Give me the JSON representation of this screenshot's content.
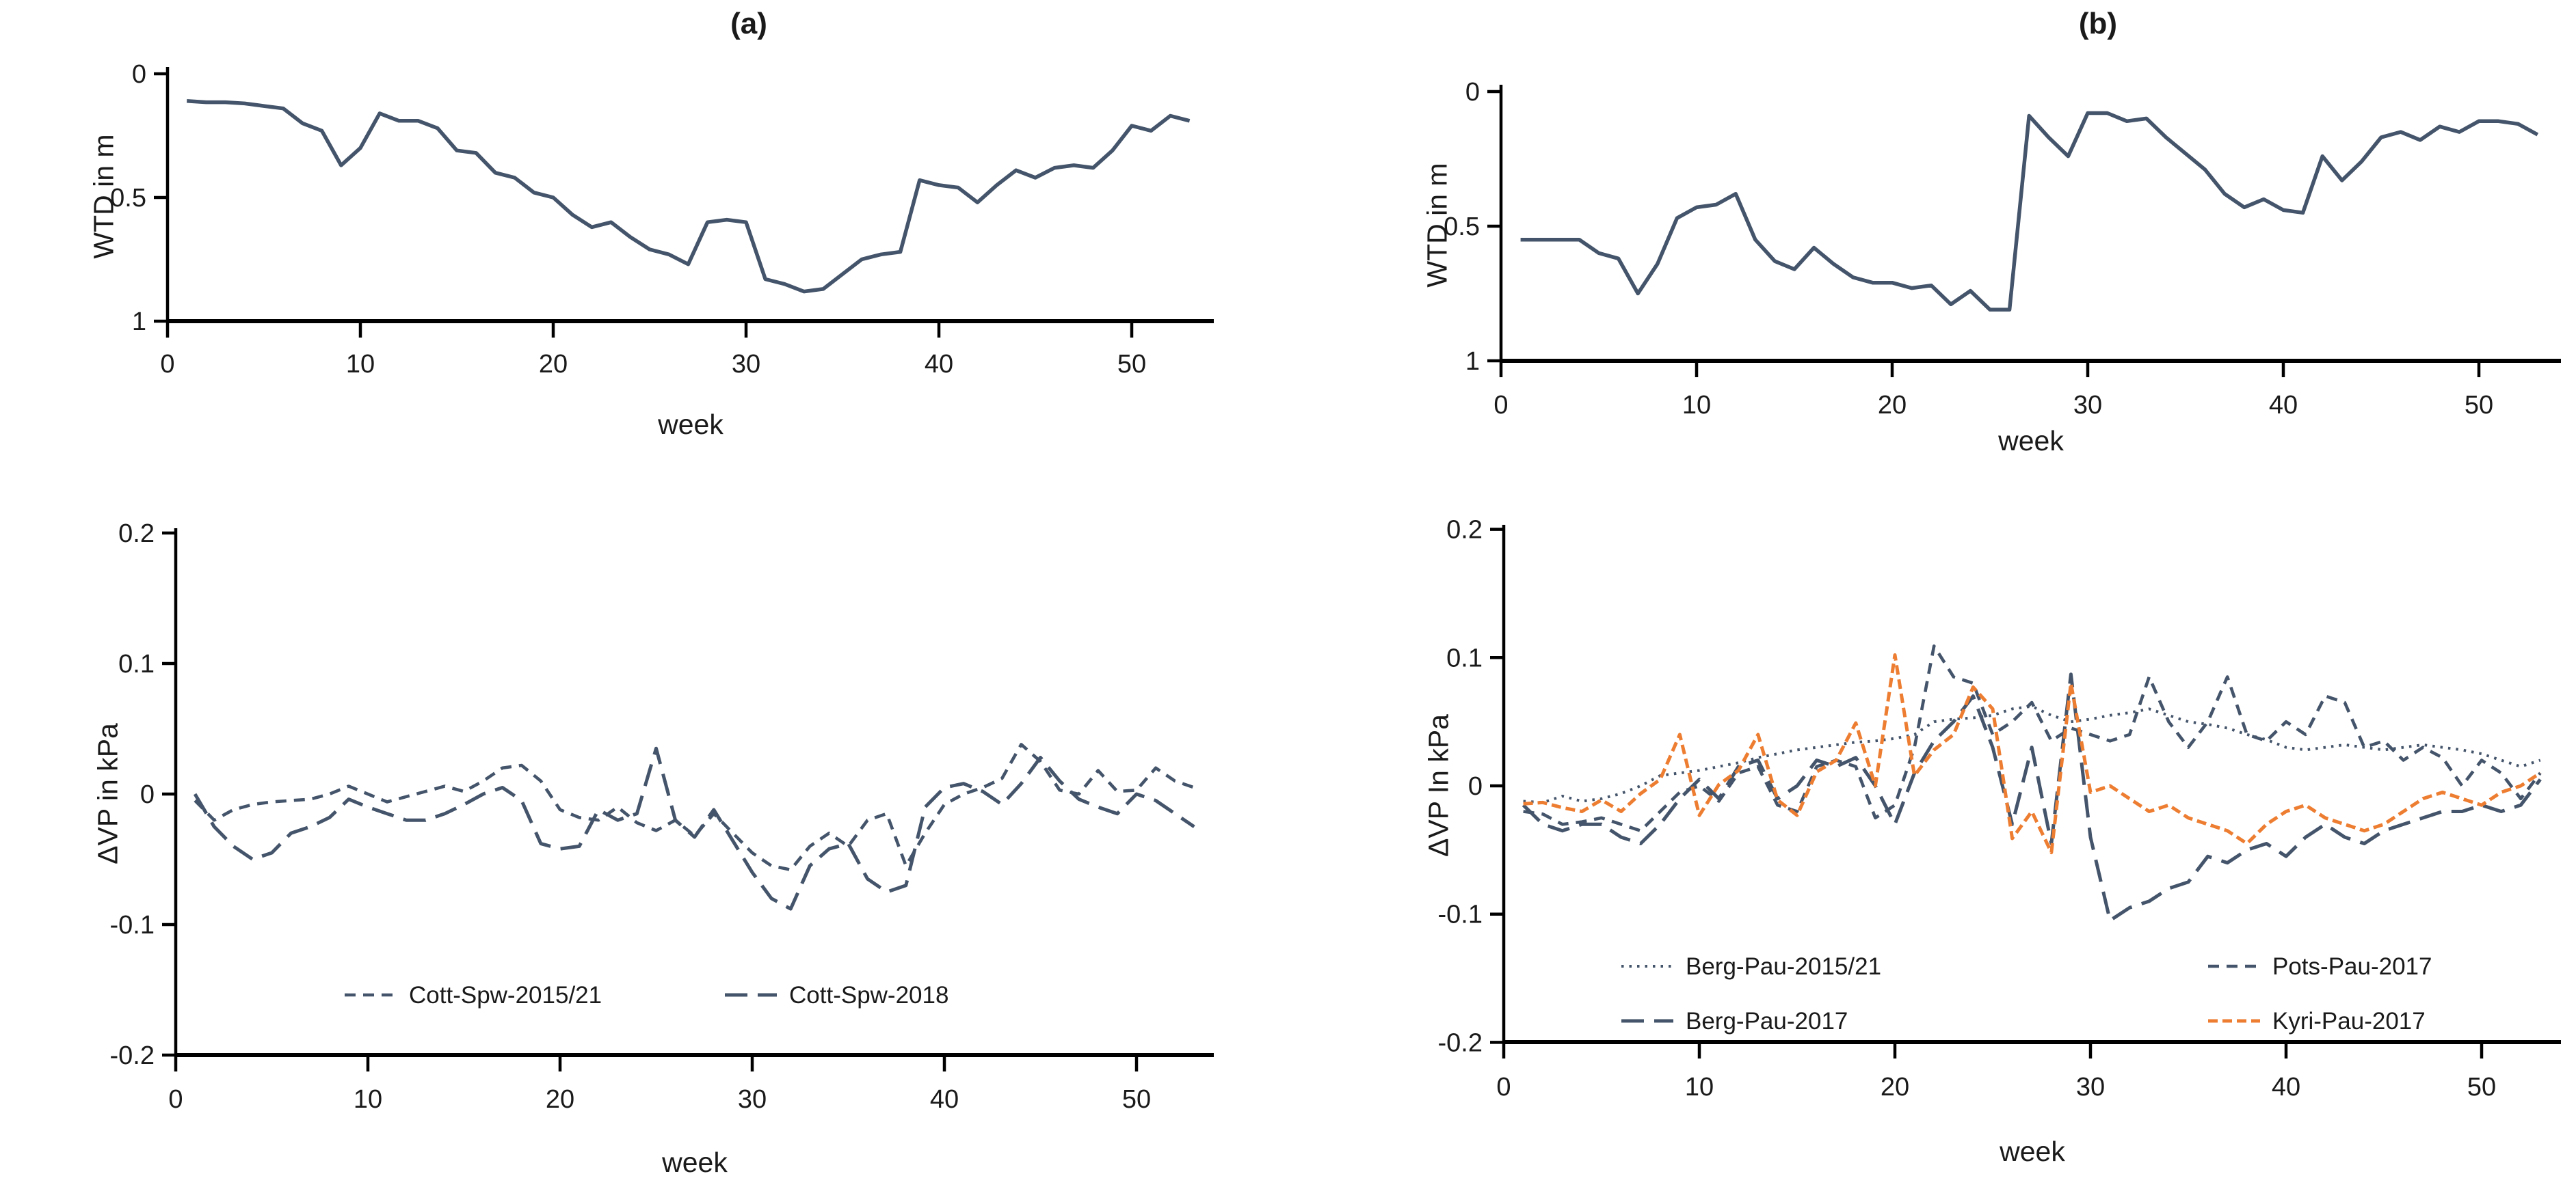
{
  "figure": {
    "background": "#ffffff",
    "axis_color": "#000000",
    "text_color": "#1a1a1a",
    "accent_slate": "#44546A",
    "accent_orange": "#ED7D31"
  },
  "chart_data": [
    {
      "id": "wtd-a",
      "type": "line",
      "title": "(a)",
      "xlabel": "week",
      "ylabel": "WTD in m",
      "x_ticks": [
        0,
        10,
        20,
        30,
        40,
        50
      ],
      "y_ticks": [
        0,
        0.5,
        1
      ],
      "y_tick_labels": [
        "0",
        "0.5",
        "1"
      ],
      "xlim": [
        0,
        54
      ],
      "ylim": [
        0,
        1
      ],
      "y_inverted": true,
      "grid": false,
      "x_start_week": 1,
      "legend_position": "none",
      "series": [
        {
          "name": "WTD",
          "color": "#44546A",
          "line_style": "solid",
          "values": [
            0.11,
            0.115,
            0.115,
            0.12,
            0.13,
            0.14,
            0.2,
            0.23,
            0.37,
            0.3,
            0.16,
            0.19,
            0.19,
            0.22,
            0.31,
            0.32,
            0.4,
            0.42,
            0.48,
            0.5,
            0.57,
            0.62,
            0.6,
            0.66,
            0.71,
            0.73,
            0.77,
            0.6,
            0.59,
            0.6,
            0.83,
            0.85,
            0.88,
            0.87,
            0.81,
            0.75,
            0.73,
            0.72,
            0.43,
            0.45,
            0.46,
            0.52,
            0.45,
            0.39,
            0.42,
            0.38,
            0.37,
            0.38,
            0.31,
            0.21,
            0.23,
            0.17,
            0.19
          ]
        }
      ]
    },
    {
      "id": "wtd-b",
      "type": "line",
      "title": "(b)",
      "xlabel": "week",
      "ylabel": "WTD in m",
      "x_ticks": [
        0,
        10,
        20,
        30,
        40,
        50
      ],
      "y_ticks": [
        0,
        0.5,
        1
      ],
      "y_tick_labels": [
        "0",
        "0.5",
        "1"
      ],
      "xlim": [
        0,
        54
      ],
      "ylim": [
        0,
        1
      ],
      "y_inverted": true,
      "grid": false,
      "x_start_week": 1,
      "legend_position": "none",
      "series": [
        {
          "name": "WTD",
          "color": "#44546A",
          "line_style": "solid",
          "values": [
            0.55,
            0.55,
            0.55,
            0.55,
            0.6,
            0.62,
            0.75,
            0.64,
            0.47,
            0.43,
            0.42,
            0.38,
            0.55,
            0.63,
            0.66,
            0.58,
            0.64,
            0.69,
            0.71,
            0.71,
            0.73,
            0.72,
            0.79,
            0.74,
            0.81,
            0.81,
            0.09,
            0.17,
            0.24,
            0.08,
            0.08,
            0.11,
            0.1,
            0.17,
            0.23,
            0.29,
            0.38,
            0.43,
            0.4,
            0.44,
            0.45,
            0.24,
            0.33,
            0.26,
            0.17,
            0.15,
            0.18,
            0.13,
            0.15,
            0.11,
            0.11,
            0.12,
            0.16
          ]
        }
      ]
    },
    {
      "id": "dvp-a",
      "type": "line",
      "title": "",
      "xlabel": "week",
      "ylabel": "ΔVP in kPa",
      "x_ticks": [
        0,
        10,
        20,
        30,
        40,
        50
      ],
      "y_ticks": [
        0.2,
        0.1,
        0,
        -0.1,
        -0.2
      ],
      "y_tick_labels": [
        "0.2",
        "0.1",
        "0",
        "-0.1",
        "-0.2"
      ],
      "xlim": [
        0,
        54
      ],
      "ylim": [
        -0.2,
        0.2
      ],
      "y_inverted": false,
      "grid": false,
      "x_start_week": 1,
      "legend_position": "bottom-inside",
      "series": [
        {
          "name": "Cott-Spw-2015/21",
          "color": "#44546A",
          "line_style": "dashed-short",
          "values": [
            -0.005,
            -0.02,
            -0.012,
            -0.008,
            -0.006,
            -0.005,
            -0.004,
            0.0,
            0.006,
            0.0,
            -0.006,
            -0.002,
            0.002,
            0.006,
            0.002,
            0.01,
            0.02,
            0.022,
            0.01,
            -0.012,
            -0.018,
            -0.02,
            -0.01,
            -0.022,
            -0.028,
            -0.02,
            -0.032,
            -0.015,
            -0.03,
            -0.045,
            -0.055,
            -0.058,
            -0.04,
            -0.03,
            -0.04,
            -0.02,
            -0.015,
            -0.055,
            -0.03,
            -0.008,
            0.0,
            0.005,
            0.012,
            0.038,
            0.025,
            0.003,
            0.0,
            0.018,
            0.002,
            0.003,
            0.02,
            0.01,
            0.005
          ]
        },
        {
          "name": "Cott-Spw-2018",
          "color": "#44546A",
          "line_style": "dashed-long",
          "values": [
            0.0,
            -0.025,
            -0.04,
            -0.05,
            -0.045,
            -0.03,
            -0.025,
            -0.018,
            -0.004,
            -0.01,
            -0.015,
            -0.02,
            -0.02,
            -0.015,
            -0.008,
            0.0,
            0.005,
            -0.005,
            -0.038,
            -0.042,
            -0.04,
            -0.012,
            -0.02,
            -0.015,
            0.035,
            -0.02,
            -0.033,
            -0.012,
            -0.036,
            -0.06,
            -0.08,
            -0.088,
            -0.055,
            -0.042,
            -0.038,
            -0.065,
            -0.075,
            -0.07,
            -0.01,
            0.005,
            0.008,
            0.002,
            -0.008,
            0.008,
            0.028,
            0.01,
            -0.004,
            -0.01,
            -0.015,
            0.0,
            -0.005,
            -0.015,
            -0.025
          ]
        }
      ]
    },
    {
      "id": "dvp-b",
      "type": "line",
      "title": "",
      "xlabel": "week",
      "ylabel": "ΔVP In kPa",
      "x_ticks": [
        0,
        10,
        20,
        30,
        40,
        50
      ],
      "y_ticks": [
        0.2,
        0.1,
        0,
        -0.1,
        -0.2
      ],
      "y_tick_labels": [
        "0.2",
        "0.1",
        "0",
        "-0.1",
        "-0.2"
      ],
      "xlim": [
        0,
        54
      ],
      "ylim": [
        -0.2,
        0.2
      ],
      "y_inverted": false,
      "grid": false,
      "x_start_week": 1,
      "legend_position": "bottom-inside-2col",
      "series": [
        {
          "name": "Berg-Pau-2015/21",
          "color": "#44546A",
          "line_style": "dotted",
          "values": [
            -0.012,
            -0.013,
            -0.008,
            -0.012,
            -0.01,
            -0.006,
            0.0,
            0.008,
            0.01,
            0.012,
            0.015,
            0.018,
            0.022,
            0.025,
            0.028,
            0.03,
            0.032,
            0.034,
            0.035,
            0.037,
            0.04,
            0.05,
            0.052,
            0.053,
            0.055,
            0.06,
            0.062,
            0.055,
            0.05,
            0.052,
            0.055,
            0.057,
            0.06,
            0.055,
            0.05,
            0.048,
            0.045,
            0.04,
            0.036,
            0.03,
            0.028,
            0.03,
            0.032,
            0.03,
            0.028,
            0.03,
            0.032,
            0.03,
            0.028,
            0.025,
            0.02,
            0.015,
            0.02
          ]
        },
        {
          "name": "Pots-Pau-2017",
          "color": "#44546A",
          "line_style": "dashed-short",
          "values": [
            -0.02,
            -0.022,
            -0.03,
            -0.028,
            -0.025,
            -0.03,
            -0.035,
            -0.02,
            -0.005,
            0.0,
            -0.012,
            0.01,
            0.015,
            -0.015,
            -0.02,
            0.015,
            0.02,
            0.015,
            -0.025,
            -0.015,
            0.03,
            0.109,
            0.085,
            0.08,
            0.04,
            0.05,
            0.065,
            0.035,
            0.045,
            0.04,
            0.035,
            0.04,
            0.085,
            0.05,
            0.03,
            0.05,
            0.085,
            0.04,
            0.035,
            0.05,
            0.04,
            0.07,
            0.065,
            0.03,
            0.035,
            0.02,
            0.03,
            0.022,
            0.0,
            0.02,
            0.01,
            -0.01,
            0.01
          ]
        },
        {
          "name": "Berg-Pau-2017",
          "color": "#44546A",
          "line_style": "dashed-long",
          "values": [
            -0.015,
            -0.03,
            -0.035,
            -0.03,
            -0.03,
            -0.04,
            -0.045,
            -0.03,
            -0.01,
            0.005,
            -0.01,
            0.015,
            0.02,
            -0.01,
            0.0,
            0.02,
            0.015,
            0.022,
            0.0,
            -0.03,
            0.01,
            0.035,
            0.05,
            0.07,
            0.03,
            -0.03,
            0.03,
            -0.045,
            0.087,
            -0.04,
            -0.105,
            -0.095,
            -0.09,
            -0.08,
            -0.075,
            -0.055,
            -0.06,
            -0.05,
            -0.045,
            -0.055,
            -0.04,
            -0.03,
            -0.04,
            -0.045,
            -0.035,
            -0.03,
            -0.025,
            -0.02,
            -0.02,
            -0.015,
            -0.02,
            -0.015,
            0.005
          ]
        },
        {
          "name": "Kyri-Pau-2017",
          "color": "#ED7D31",
          "line_style": "dashed-orange",
          "values": [
            -0.014,
            -0.013,
            -0.017,
            -0.02,
            -0.011,
            -0.02,
            -0.006,
            0.005,
            0.04,
            -0.023,
            0.001,
            0.012,
            0.04,
            -0.011,
            -0.023,
            0.011,
            0.02,
            0.049,
            0.0,
            0.102,
            0.008,
            0.028,
            0.04,
            0.077,
            0.06,
            -0.041,
            -0.02,
            -0.052,
            0.08,
            -0.005,
            0.0,
            -0.01,
            -0.02,
            -0.015,
            -0.025,
            -0.03,
            -0.035,
            -0.045,
            -0.03,
            -0.02,
            -0.015,
            -0.025,
            -0.03,
            -0.035,
            -0.03,
            -0.02,
            -0.01,
            -0.005,
            -0.01,
            -0.015,
            -0.005,
            0.0,
            0.01
          ]
        }
      ]
    }
  ]
}
